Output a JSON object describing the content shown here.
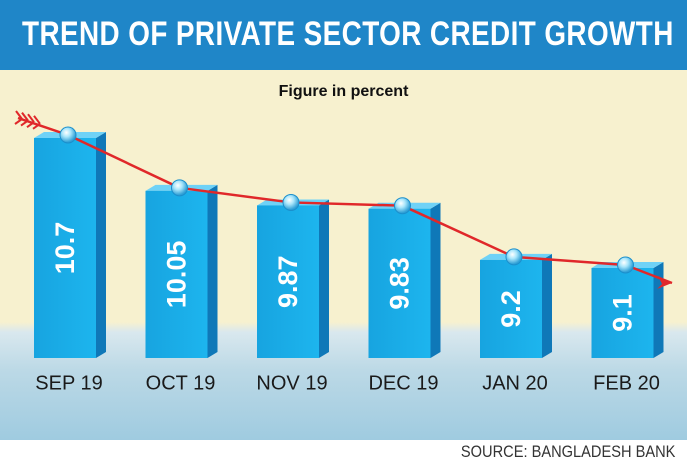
{
  "header": {
    "title": "TREND OF PRIVATE SECTOR CREDIT GROWTH",
    "subtitle": "Figure in percent"
  },
  "footer": {
    "source": "SOURCE: BANGLADESH BANK"
  },
  "colors": {
    "title_bar": "#1f86c8",
    "bar_front": "#1aaee8",
    "bar_top": "#6fd2f7",
    "bar_side": "#0f78b8",
    "trend_line": "#e0282a",
    "marker": "#7fd6f5"
  },
  "chart_data": {
    "type": "bar",
    "title": "TREND OF PRIVATE SECTOR CREDIT GROWTH",
    "subtitle": "Figure in percent",
    "categories": [
      "SEP 19",
      "OCT 19",
      "NOV 19",
      "DEC 19",
      "JAN 20",
      "FEB 20"
    ],
    "values": [
      10.7,
      10.05,
      9.87,
      9.83,
      9.2,
      9.1
    ],
    "value_labels": [
      "10.7",
      "10.05",
      "9.87",
      "9.83",
      "9.2",
      "9.1"
    ],
    "trend_line": true,
    "xlabel": "",
    "ylabel": "",
    "grid": false,
    "legend": "none"
  }
}
